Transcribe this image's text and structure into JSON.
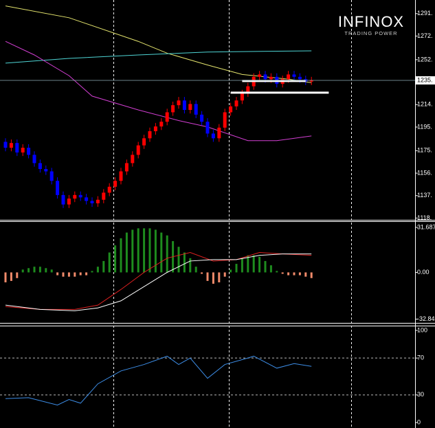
{
  "chart_data": [
    {
      "type": "candlestick",
      "up_color": "#ff0000",
      "down_color": "#0000ff",
      "open": [
        1183,
        1178,
        1182,
        1174,
        1178,
        1172,
        1165,
        1160,
        1158,
        1150,
        1138,
        1130,
        1135,
        1138,
        1136,
        1133,
        1131,
        1134,
        1140,
        1145,
        1150,
        1158,
        1165,
        1172,
        1180,
        1186,
        1192,
        1196,
        1200,
        1208,
        1214,
        1218,
        1210,
        1215,
        1206,
        1200,
        1190,
        1186,
        1195,
        1208,
        1213,
        1218,
        1224,
        1230,
        1238,
        1240,
        1236,
        1238,
        1232,
        1236,
        1240,
        1238,
        1236,
        1234
      ],
      "high": [
        1186,
        1185,
        1185,
        1181,
        1181,
        1175,
        1168,
        1163,
        1161,
        1153,
        1141,
        1138,
        1141,
        1141,
        1139,
        1136,
        1137,
        1143,
        1148,
        1153,
        1161,
        1168,
        1175,
        1183,
        1189,
        1195,
        1199,
        1203,
        1211,
        1217,
        1221,
        1221,
        1218,
        1218,
        1209,
        1203,
        1193,
        1198,
        1211,
        1216,
        1221,
        1227,
        1233,
        1241,
        1243,
        1243,
        1241,
        1241,
        1239,
        1243,
        1243,
        1241,
        1239,
        1238
      ],
      "low": [
        1175,
        1175,
        1171,
        1171,
        1169,
        1162,
        1157,
        1155,
        1147,
        1135,
        1127,
        1127,
        1132,
        1133,
        1130,
        1128,
        1128,
        1131,
        1137,
        1142,
        1147,
        1155,
        1162,
        1169,
        1177,
        1183,
        1189,
        1193,
        1197,
        1205,
        1211,
        1207,
        1207,
        1203,
        1197,
        1187,
        1183,
        1183,
        1192,
        1205,
        1210,
        1215,
        1221,
        1227,
        1235,
        1233,
        1233,
        1229,
        1229,
        1233,
        1235,
        1233,
        1231,
        1231
      ],
      "close": [
        1178,
        1182,
        1174,
        1178,
        1172,
        1165,
        1160,
        1158,
        1150,
        1138,
        1130,
        1135,
        1138,
        1136,
        1133,
        1131,
        1134,
        1140,
        1145,
        1150,
        1158,
        1165,
        1172,
        1180,
        1186,
        1192,
        1196,
        1200,
        1208,
        1214,
        1218,
        1210,
        1215,
        1206,
        1200,
        1190,
        1186,
        1195,
        1208,
        1213,
        1218,
        1224,
        1230,
        1238,
        1240,
        1236,
        1238,
        1232,
        1236,
        1240,
        1238,
        1236,
        1234,
        1235
      ],
      "overlays": [
        {
          "color": "#e6e66e",
          "x": [
            0,
            11,
            23,
            28,
            35,
            41,
            49,
            53
          ],
          "values": [
            1298,
            1288,
            1268,
            1258,
            1248,
            1240,
            1236,
            1233
          ]
        },
        {
          "color": "#4fd6d6",
          "x": [
            0,
            11,
            23,
            35,
            53
          ],
          "values": [
            1249.6,
            1253.6,
            1256.5,
            1259,
            1260
          ]
        },
        {
          "color": "#d43fd4",
          "x": [
            0,
            5,
            11,
            15,
            23,
            30,
            35,
            42,
            47,
            53
          ],
          "values": [
            1268,
            1256.5,
            1239,
            1221.7,
            1210,
            1201,
            1195.6,
            1184,
            1184,
            1188
          ]
        }
      ],
      "levels": [
        {
          "value": 1234.5,
          "x": [
            41,
            52
          ]
        },
        {
          "value": 1224.6,
          "x": [
            39,
            56
          ]
        }
      ],
      "current_price": {
        "value": 1235,
        "label": "1235."
      },
      "ylim": [
        1117,
        1303
      ],
      "yticks": [
        {
          "value": 1118.5,
          "label": "1118."
        },
        {
          "value": 1137.5,
          "label": "1137."
        },
        {
          "value": 1156.5,
          "label": "1156."
        },
        {
          "value": 1175.5,
          "label": "1175."
        },
        {
          "value": 1195.5,
          "label": "1195."
        },
        {
          "value": 1214.5,
          "label": "1214."
        },
        {
          "value": 1252.5,
          "label": "1252."
        },
        {
          "value": 1272.5,
          "label": "1272."
        },
        {
          "value": 1291.5,
          "label": "1291."
        }
      ]
    },
    {
      "type": "macd",
      "positive_color": "#1e8c1e",
      "negative_color": "#f08a6a",
      "values": [
        -7,
        -6,
        -4,
        2,
        3,
        4,
        4,
        3,
        2,
        -2,
        -3,
        -3,
        -3,
        -2,
        -2,
        1,
        4,
        8,
        14,
        19,
        24,
        28,
        30,
        31,
        31,
        31,
        30,
        28,
        26,
        22,
        18,
        14,
        10,
        4,
        -1,
        -6,
        -8,
        -7,
        -3,
        2,
        6,
        10,
        12,
        12,
        11,
        8,
        5,
        1,
        -1,
        -2,
        -2,
        -2,
        -3,
        -4
      ],
      "series": [
        {
          "color": "#e02020",
          "x": [
            0,
            6,
            12,
            16,
            20,
            24,
            28,
            32,
            36,
            40,
            44,
            48,
            53
          ],
          "values": [
            -24,
            -26,
            -26,
            -23,
            -12,
            0,
            10,
            14,
            8,
            9,
            14,
            13,
            12
          ]
        },
        {
          "color": "#ffffff",
          "x": [
            0,
            6,
            12,
            16,
            20,
            24,
            28,
            32,
            36,
            40,
            44,
            48,
            53
          ],
          "values": [
            -23,
            -26,
            -27,
            -25,
            -20,
            -10,
            0,
            8,
            9,
            9,
            12,
            13,
            13
          ]
        }
      ],
      "ylim": [
        -35.5,
        35.5
      ],
      "yticks": [
        31.687,
        {
          "value": 0,
          "label": "0.00"
        },
        -32.84
      ]
    },
    {
      "type": "line",
      "series": [
        {
          "color": "#3d8ee8",
          "x": [
            0,
            4,
            9,
            11,
            13,
            16,
            20,
            24,
            28,
            30,
            32,
            35,
            38,
            42,
            43,
            47,
            50,
            53
          ],
          "values": [
            26,
            27,
            19,
            25,
            21,
            42,
            56,
            63,
            72,
            63,
            70,
            48,
            63,
            70,
            72,
            59,
            64,
            61
          ]
        }
      ],
      "levels": [
        70,
        30
      ],
      "ylim": [
        -5.9,
        104.4
      ],
      "yticks": [
        100,
        70,
        30,
        0
      ]
    }
  ],
  "logo": {
    "name": "INFINOX",
    "tagline": "TRADING POWER"
  }
}
